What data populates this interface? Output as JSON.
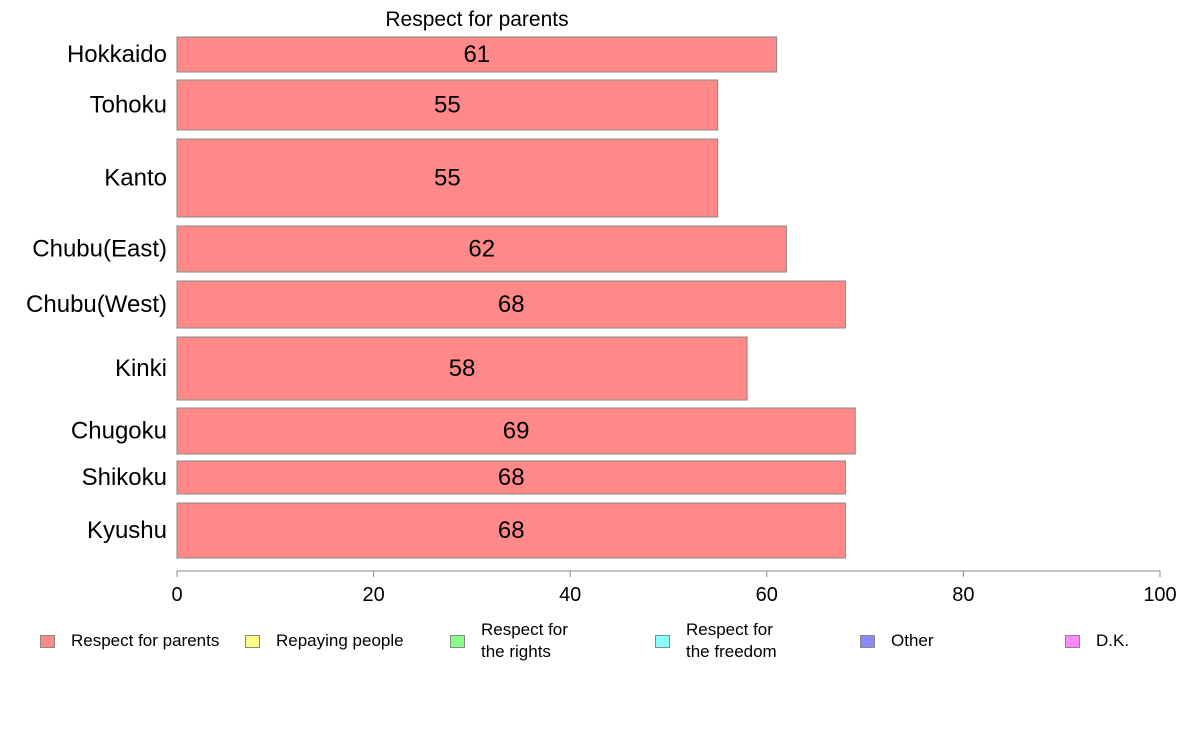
{
  "chart_data": {
    "type": "bar",
    "orientation": "horizontal",
    "title": "Respect for parents",
    "xlabel": "",
    "ylabel": "",
    "categories": [
      "Hokkaido",
      "Tohoku",
      "Kanto",
      "Chubu(East)",
      "Chubu(West)",
      "Kinki",
      "Chugoku",
      "Shikoku",
      "Kyushu"
    ],
    "series": [
      {
        "name": "Respect for parents",
        "color": "#ff8888",
        "values": [
          61,
          55,
          55,
          62,
          68,
          58,
          69,
          68,
          68
        ],
        "data_labels": [
          "61",
          "55",
          "55",
          "62",
          "68",
          "58",
          "69",
          "68",
          "68"
        ]
      }
    ],
    "xlim": [
      0,
      100
    ],
    "xticks": [
      0,
      20,
      40,
      60,
      80,
      100
    ],
    "xtick_labels": [
      "0",
      "20",
      "40",
      "60",
      "80",
      "100"
    ],
    "grid": false,
    "legend_position": "bottom",
    "legend": [
      {
        "label": "Respect for parents",
        "color": "#ff8888"
      },
      {
        "label": "Repaying people",
        "color": "#ffff88"
      },
      {
        "label": "Respect for\nthe rights",
        "color": "#88ff88"
      },
      {
        "label": "Respect for\nthe freedom",
        "color": "#88ffff"
      },
      {
        "label": "Other",
        "color": "#8888ff"
      },
      {
        "label": "D.K.",
        "color": "#ff88ff"
      }
    ]
  }
}
